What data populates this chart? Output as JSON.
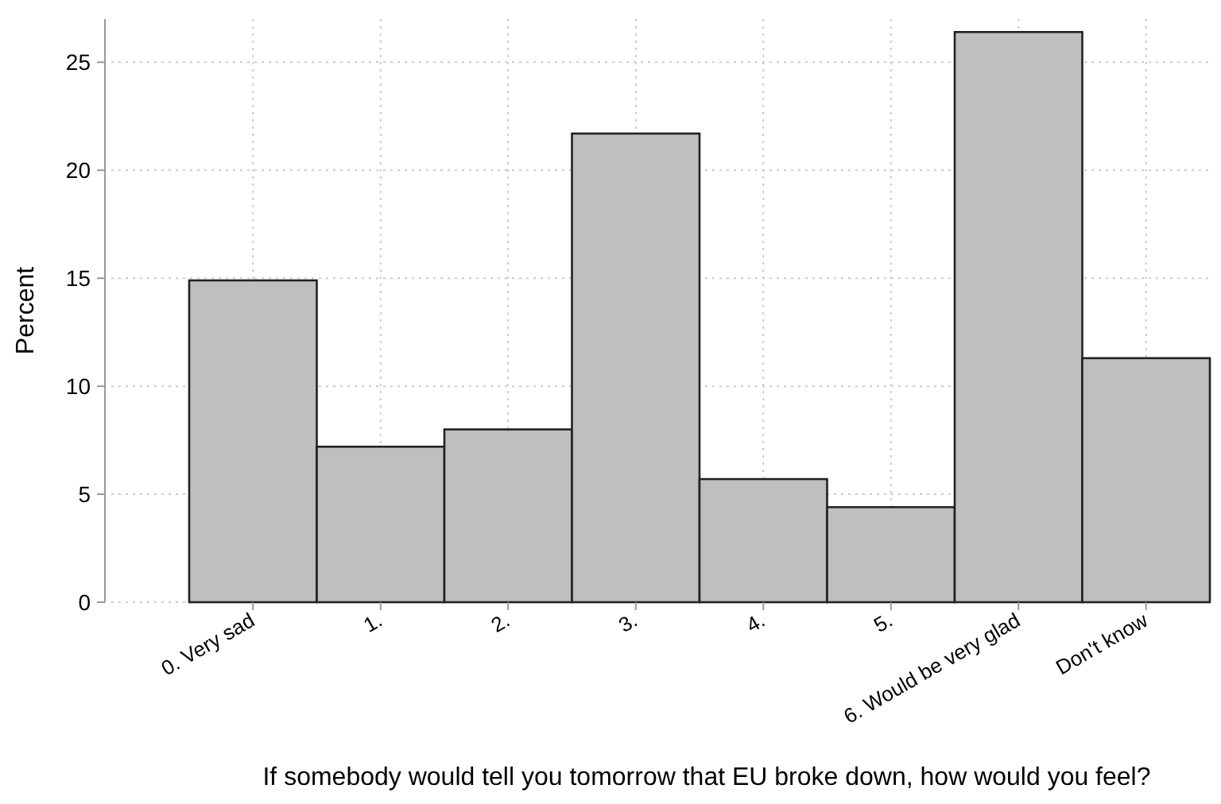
{
  "chart_data": {
    "type": "bar",
    "xlabel": "If somebody would tell you tomorrow that EU broke down, how would you feel?",
    "ylabel": "Percent",
    "categories": [
      "0. Very sad",
      "1.",
      "2.",
      "3.",
      "4.",
      "5.",
      "6. Would be very glad",
      "Don't know"
    ],
    "values": [
      14.9,
      7.2,
      8.0,
      21.7,
      5.7,
      4.4,
      26.4,
      11.3
    ],
    "color": "#bfbfbf",
    "ylim": [
      0,
      27
    ],
    "yticks": [
      0,
      5,
      10,
      15,
      20,
      25
    ],
    "grid": true
  }
}
